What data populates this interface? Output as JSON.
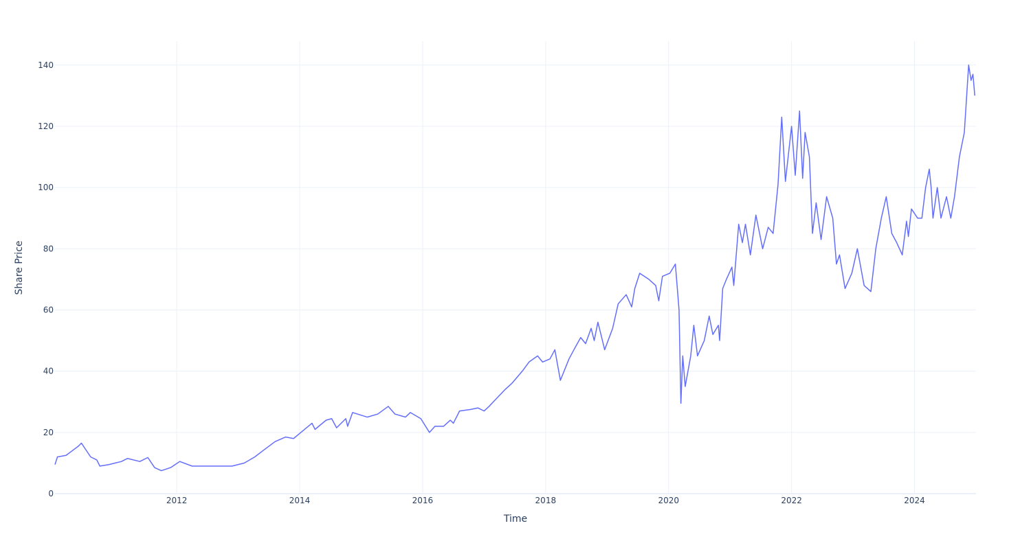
{
  "chart_data": {
    "type": "line",
    "x_label": "Time",
    "y_label": "Share Price",
    "xlim": [
      2010.02,
      2025.0
    ],
    "ylim": [
      0,
      147.8
    ],
    "xticks": [
      2012,
      2014,
      2016,
      2018,
      2020,
      2022,
      2024
    ],
    "yticks": [
      0,
      20,
      40,
      60,
      80,
      100,
      120,
      140
    ],
    "grid": true,
    "series": [
      {
        "color": "#636efa",
        "x": [
          2010.02,
          2010.06,
          2010.2,
          2010.3,
          2010.4,
          2010.45,
          2010.5,
          2010.6,
          2010.7,
          2010.75,
          2010.9,
          2011.0,
          2011.1,
          2011.2,
          2011.4,
          2011.53,
          2011.64,
          2011.75,
          2011.9,
          2012.05,
          2012.25,
          2012.6,
          2012.9,
          2013.1,
          2013.27,
          2013.4,
          2013.6,
          2013.77,
          2013.9,
          2014.05,
          2014.2,
          2014.25,
          2014.43,
          2014.52,
          2014.6,
          2014.75,
          2014.78,
          2014.86,
          2015.1,
          2015.27,
          2015.44,
          2015.55,
          2015.72,
          2015.8,
          2015.97,
          2016.11,
          2016.2,
          2016.34,
          2016.45,
          2016.5,
          2016.6,
          2016.78,
          2016.9,
          2017.0,
          2017.08,
          2017.15,
          2017.34,
          2017.45,
          2017.62,
          2017.73,
          2017.87,
          2017.95,
          2018.07,
          2018.15,
          2018.24,
          2018.38,
          2018.46,
          2018.57,
          2018.65,
          2018.74,
          2018.79,
          2018.85,
          2018.9,
          2018.96,
          2019.09,
          2019.18,
          2019.31,
          2019.4,
          2019.45,
          2019.53,
          2019.68,
          2019.79,
          2019.84,
          2019.9,
          2020.02,
          2020.11,
          2020.17,
          2020.2,
          2020.23,
          2020.27,
          2020.36,
          2020.41,
          2020.47,
          2020.58,
          2020.66,
          2020.72,
          2020.81,
          2020.83,
          2020.88,
          2020.94,
          2021.03,
          2021.06,
          2021.14,
          2021.2,
          2021.25,
          2021.33,
          2021.42,
          2021.53,
          2021.62,
          2021.7,
          2021.78,
          2021.84,
          2021.9,
          2022.0,
          2022.06,
          2022.13,
          2022.18,
          2022.22,
          2022.29,
          2022.34,
          2022.4,
          2022.48,
          2022.57,
          2022.67,
          2022.73,
          2022.78,
          2022.87,
          2022.98,
          2023.07,
          2023.18,
          2023.29,
          2023.37,
          2023.46,
          2023.54,
          2023.63,
          2023.71,
          2023.8,
          2023.87,
          2023.9,
          2023.95,
          2024.05,
          2024.12,
          2024.18,
          2024.24,
          2024.27,
          2024.3,
          2024.37,
          2024.43,
          2024.52,
          2024.59,
          2024.65,
          2024.73,
          2024.81,
          2024.88,
          2024.92,
          2024.95,
          2024.98
        ],
        "values": [
          9.5,
          12,
          12.5,
          14,
          15.5,
          16.5,
          15,
          12,
          11,
          9,
          9.5,
          10,
          10.5,
          11.5,
          10.5,
          11.8,
          8.5,
          7.5,
          8.5,
          10.5,
          9,
          9,
          9,
          10,
          12,
          14,
          17,
          18.5,
          18,
          20.5,
          23,
          21,
          24,
          24.5,
          21.5,
          24.5,
          22,
          26.5,
          25,
          26,
          28.5,
          26,
          25,
          26.5,
          24.5,
          20,
          22,
          22,
          24,
          23,
          27,
          27.5,
          28,
          27,
          28.5,
          30,
          34,
          36,
          40,
          43,
          45,
          43,
          44,
          47,
          37,
          44,
          47,
          51,
          49,
          54,
          50,
          56,
          52,
          47,
          54,
          62,
          65,
          61,
          67,
          72,
          70,
          68,
          63,
          71,
          72,
          75,
          60,
          29.5,
          45,
          35,
          45,
          55,
          45,
          50,
          58,
          52,
          55,
          50,
          67,
          70,
          74,
          68,
          88,
          82,
          88,
          78,
          91,
          80,
          87,
          85,
          101,
          123,
          102,
          120,
          104,
          125,
          103,
          118,
          110,
          85,
          95,
          83,
          97,
          90,
          75,
          78,
          67,
          72,
          80,
          68,
          66,
          80,
          90,
          97,
          85,
          82,
          78,
          89,
          84,
          93,
          90,
          90,
          100,
          106,
          100,
          90,
          100,
          90,
          97,
          90,
          97,
          110,
          118,
          140,
          135,
          137,
          130
        ]
      }
    ]
  }
}
